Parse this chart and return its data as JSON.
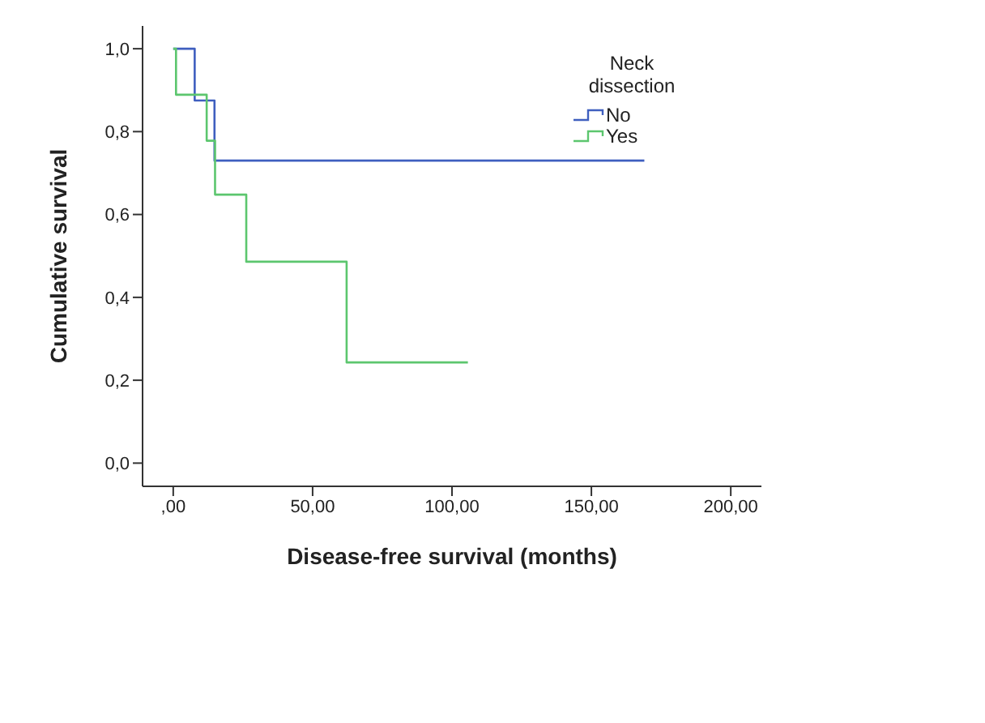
{
  "chart_data": {
    "type": "step",
    "xlabel": "Disease-free survival (months)",
    "ylabel": "Cumulative survival",
    "legend_title": "Neck dissection",
    "series": [
      {
        "name": "No",
        "color": "#3f5fbf",
        "x": [
          0,
          7.7,
          14.8,
          169
        ],
        "values": [
          1,
          0.875,
          0.73,
          0.73
        ]
      },
      {
        "name": "Yes",
        "color": "#5cc66e",
        "x": [
          0,
          1,
          12,
          15,
          26.2,
          62.2,
          105.7
        ],
        "values": [
          1,
          0.889,
          0.778,
          0.648,
          0.486,
          0.243,
          0.243
        ]
      }
    ],
    "xlim": [
      -11,
      211
    ],
    "xticks": [
      {
        "value": 0,
        "label": ",00"
      },
      {
        "value": 50,
        "label": "50,00"
      },
      {
        "value": 100,
        "label": "100,00"
      },
      {
        "value": 150,
        "label": "150,00"
      },
      {
        "value": 200,
        "label": "200,00"
      }
    ],
    "ylim": [
      -0.056,
      1.055
    ],
    "yticks": [
      {
        "value": 0,
        "label": "0,0"
      },
      {
        "value": 0.2,
        "label": "0,2"
      },
      {
        "value": 0.4,
        "label": "0,4"
      },
      {
        "value": 0.6,
        "label": "0,6"
      },
      {
        "value": 0.8,
        "label": "0,8"
      },
      {
        "value": 1,
        "label": "1,0"
      }
    ],
    "grid": false,
    "legend": "top right",
    "marker": "none",
    "line_style": "solid"
  }
}
